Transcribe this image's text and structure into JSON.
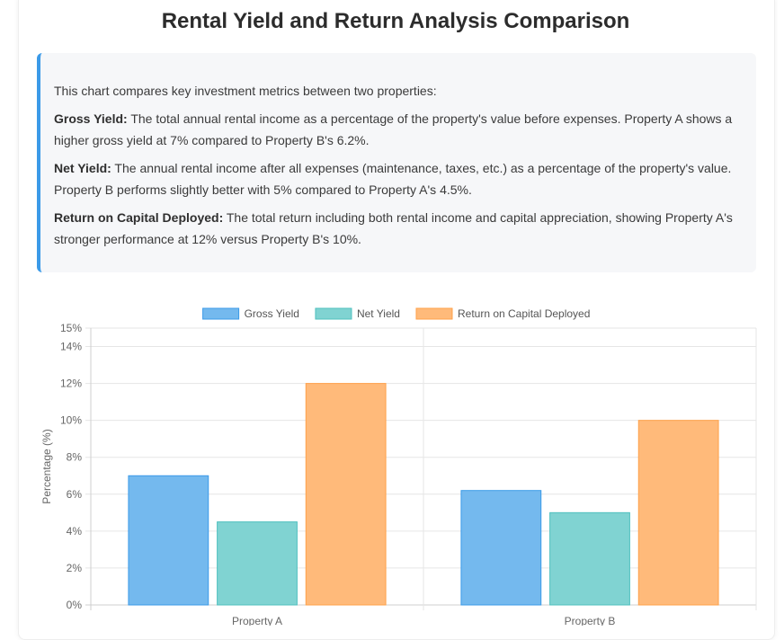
{
  "title": "Rental Yield and Return Analysis Comparison",
  "description": {
    "intro": "This chart compares key investment metrics between two properties:",
    "items": [
      {
        "term": "Gross Yield:",
        "text": " The total annual rental income as a percentage of the property's value before expenses. Property A shows a higher gross yield at 7% compared to Property B's 6.2%."
      },
      {
        "term": "Net Yield:",
        "text": " The annual rental income after all expenses (maintenance, taxes, etc.) as a percentage of the property's value. Property B performs slightly better with 5% compared to Property A's 4.5%."
      },
      {
        "term": "Return on Capital Deployed:",
        "text": " The total return including both rental income and capital appreciation, showing Property A's stronger performance at 12% versus Property B's 10%."
      }
    ]
  },
  "chart_data": {
    "type": "bar",
    "categories": [
      "Property A",
      "Property B"
    ],
    "series": [
      {
        "name": "Gross Yield",
        "values": [
          7,
          6.2
        ],
        "color": "#74b9ee",
        "border": "#3b9ae8"
      },
      {
        "name": "Net Yield",
        "values": [
          4.5,
          5
        ],
        "color": "#80d3d2",
        "border": "#4fc0bf"
      },
      {
        "name": "Return on Capital Deployed",
        "values": [
          12,
          10
        ],
        "color": "#ffba7a",
        "border": "#ffa14a"
      }
    ],
    "ylabel": "Percentage (%)",
    "ylim": [
      0,
      15
    ],
    "yticks": [
      "0%",
      "2%",
      "4%",
      "6%",
      "8%",
      "10%",
      "12%",
      "14%",
      "15%"
    ],
    "ytick_values": [
      0,
      2,
      4,
      6,
      8,
      10,
      12,
      14,
      15
    ],
    "legend_position": "top",
    "grid": true
  }
}
